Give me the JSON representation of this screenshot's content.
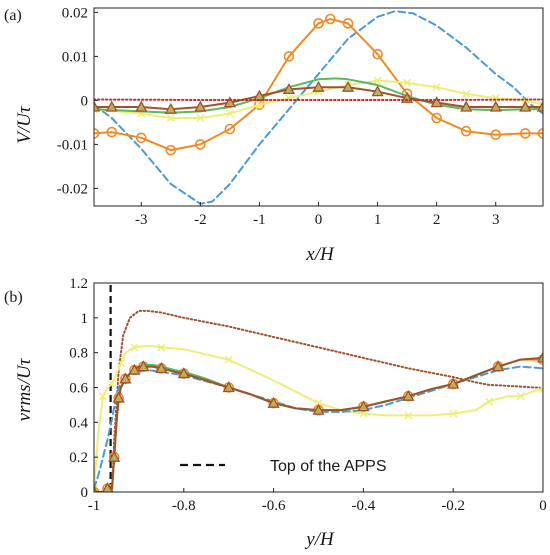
{
  "chart_data": [
    {
      "panel_label": "(a)",
      "type": "line",
      "xlabel": "x/H",
      "ylabel": "V/Uτ",
      "xlim": [
        -3.8,
        3.8
      ],
      "ylim": [
        -0.024,
        0.021
      ],
      "xticks": [
        -3,
        -2,
        -1,
        0,
        1,
        2,
        3
      ],
      "xtick_labels": [
        "-3",
        "-2",
        "-1",
        "0",
        "1",
        "2",
        "3"
      ],
      "yticks": [
        -0.02,
        -0.01,
        0,
        0.01,
        0.02
      ],
      "ytick_labels": [
        "-0.02",
        "-0.01",
        "0",
        "0.01",
        "0.02"
      ],
      "grid": false,
      "series": [
        {
          "color": "#4b9ad4",
          "style": "dashed",
          "marker": "none",
          "x": [
            -3.8,
            -3.5,
            -3.0,
            -2.5,
            -2.0,
            -1.8,
            -1.5,
            -1.0,
            -0.5,
            0.0,
            0.5,
            1.0,
            1.3,
            1.6,
            2.0,
            2.5,
            3.0,
            3.3,
            3.6,
            3.8
          ],
          "y": [
            -0.001,
            -0.004,
            -0.011,
            -0.019,
            -0.0235,
            -0.023,
            -0.019,
            -0.01,
            -0.002,
            0.006,
            0.014,
            0.019,
            0.0203,
            0.0198,
            0.017,
            0.012,
            0.006,
            0.003,
            -0.001,
            -0.003
          ]
        },
        {
          "color": "#f08a24",
          "style": "solid",
          "marker": "circle",
          "x": [
            -3.8,
            -3.5,
            -3.0,
            -2.5,
            -2.0,
            -1.5,
            -1.0,
            -0.5,
            0.0,
            0.2,
            0.5,
            1.0,
            1.5,
            2.0,
            2.5,
            3.0,
            3.5,
            3.8
          ],
          "y": [
            -0.0075,
            -0.0072,
            -0.0085,
            -0.0113,
            -0.01,
            -0.0065,
            -0.001,
            0.01,
            0.0175,
            0.0185,
            0.0175,
            0.0105,
            0.0015,
            -0.004,
            -0.007,
            -0.0078,
            -0.0075,
            -0.0075
          ]
        },
        {
          "color": "#eded7a",
          "style": "solid",
          "marker": "x",
          "x": [
            -3.8,
            -3.0,
            -2.5,
            -2.0,
            -1.5,
            -1.0,
            -0.5,
            0.0,
            0.5,
            1.0,
            1.5,
            2.0,
            2.5,
            3.0,
            3.5,
            3.8
          ],
          "y": [
            -0.002,
            -0.003,
            -0.004,
            -0.004,
            -0.003,
            -0.001,
            0.0005,
            0.002,
            0.0035,
            0.0045,
            0.004,
            0.003,
            0.0015,
            0.0005,
            0.0,
            -0.001
          ]
        },
        {
          "color": "#5cb85c",
          "style": "solid",
          "marker": "none",
          "x": [
            -3.8,
            -3.0,
            -2.5,
            -2.0,
            -1.5,
            -1.0,
            -0.5,
            0.0,
            0.3,
            0.5,
            1.0,
            1.5,
            2.0,
            2.5,
            3.0,
            3.5,
            3.8
          ],
          "y": [
            -0.002,
            -0.0025,
            -0.0028,
            -0.0025,
            -0.0015,
            0.0005,
            0.003,
            0.0048,
            0.005,
            0.0048,
            0.0035,
            0.001,
            -0.001,
            -0.002,
            -0.0022,
            -0.002,
            -0.002
          ]
        },
        {
          "color": "#a0522d",
          "style": "solid",
          "marker": "triangle",
          "x": [
            -3.8,
            -3.5,
            -3.0,
            -2.5,
            -2.0,
            -1.5,
            -1.0,
            -0.5,
            0.0,
            0.5,
            1.0,
            1.5,
            2.0,
            2.5,
            3.0,
            3.5,
            3.8
          ],
          "y": [
            -0.0015,
            -0.0015,
            -0.0015,
            -0.002,
            -0.0015,
            -0.0005,
            0.001,
            0.0025,
            0.003,
            0.003,
            0.002,
            0.0005,
            -0.0005,
            -0.0015,
            -0.0015,
            -0.0015,
            -0.0015
          ]
        },
        {
          "color": "#c03030",
          "style": "dotted",
          "marker": "none",
          "x": [
            -3.8,
            -2.0,
            0.0,
            2.0,
            3.8
          ],
          "y": [
            0.0002,
            0.0001,
            0.0001,
            0.0001,
            0.0002
          ]
        }
      ]
    },
    {
      "panel_label": "(b)",
      "type": "line",
      "xlabel": "y/H",
      "ylabel": "vrms/Uτ",
      "xlim": [
        -1.0,
        0.0
      ],
      "ylim": [
        0.0,
        1.2
      ],
      "xticks": [
        -1,
        -0.8,
        -0.6,
        -0.4,
        -0.2,
        0
      ],
      "xtick_labels": [
        "-1",
        "-0.8",
        "-0.6",
        "-0.4",
        "-0.2",
        "0"
      ],
      "yticks": [
        0,
        0.2,
        0.4,
        0.6,
        0.8,
        1.0,
        1.2
      ],
      "ytick_labels": [
        "0",
        "0.2",
        "0.4",
        "0.6",
        "0.8",
        "1",
        "1.2"
      ],
      "grid": false,
      "annotation_line_x": -0.963,
      "legend": [
        {
          "label": "Top of the APPS",
          "style": "dashed",
          "color": "#111111"
        }
      ],
      "series": [
        {
          "color": "#a0522d",
          "style": "dotted",
          "marker": "none",
          "x": [
            -0.96,
            -0.955,
            -0.945,
            -0.935,
            -0.92,
            -0.9,
            -0.88,
            -0.85,
            -0.8,
            -0.7,
            -0.6,
            -0.5,
            -0.4,
            -0.3,
            -0.2,
            -0.15,
            -0.12,
            -0.08,
            -0.05,
            -0.02,
            0.0
          ],
          "y": [
            0.0,
            0.3,
            0.7,
            0.9,
            1.0,
            1.04,
            1.04,
            1.03,
            1.0,
            0.95,
            0.89,
            0.83,
            0.77,
            0.71,
            0.66,
            0.63,
            0.615,
            0.61,
            0.605,
            0.6,
            0.6
          ]
        },
        {
          "color": "#eded7a",
          "style": "solid",
          "marker": "x",
          "x": [
            -1.0,
            -0.99,
            -0.98,
            -0.97,
            -0.96,
            -0.95,
            -0.94,
            -0.93,
            -0.91,
            -0.88,
            -0.85,
            -0.8,
            -0.7,
            -0.6,
            -0.5,
            -0.45,
            -0.4,
            -0.35,
            -0.3,
            -0.25,
            -0.2,
            -0.15,
            -0.12,
            -0.08,
            -0.05,
            -0.02,
            0.0
          ],
          "y": [
            0.02,
            0.35,
            0.55,
            0.6,
            0.62,
            0.68,
            0.74,
            0.8,
            0.83,
            0.84,
            0.83,
            0.82,
            0.76,
            0.64,
            0.51,
            0.47,
            0.45,
            0.44,
            0.44,
            0.44,
            0.45,
            0.47,
            0.52,
            0.55,
            0.55,
            0.58,
            0.59
          ]
        },
        {
          "color": "#4b9ad4",
          "style": "dashed",
          "marker": "none",
          "x": [
            -1.0,
            -0.99,
            -0.98,
            -0.97,
            -0.96,
            -0.95,
            -0.94,
            -0.93,
            -0.92,
            -0.9,
            -0.88,
            -0.85,
            -0.8,
            -0.7,
            -0.6,
            -0.55,
            -0.5,
            -0.45,
            -0.4,
            -0.35,
            -0.3,
            -0.25,
            -0.2,
            -0.15,
            -0.1,
            -0.05,
            0.0
          ],
          "y": [
            0.02,
            0.1,
            0.2,
            0.3,
            0.42,
            0.56,
            0.63,
            0.66,
            0.68,
            0.69,
            0.7,
            0.69,
            0.67,
            0.6,
            0.52,
            0.48,
            0.46,
            0.46,
            0.47,
            0.5,
            0.54,
            0.58,
            0.62,
            0.66,
            0.7,
            0.72,
            0.71
          ]
        },
        {
          "color": "#f08a24",
          "style": "solid",
          "marker": "circle",
          "x": [
            -1.0,
            -0.98,
            -0.97,
            -0.96,
            -0.955,
            -0.95,
            -0.945,
            -0.94,
            -0.93,
            -0.92,
            -0.91,
            -0.9,
            -0.89,
            -0.87,
            -0.85,
            -0.82,
            -0.8,
            -0.75,
            -0.7,
            -0.65,
            -0.6,
            -0.55,
            -0.5,
            -0.45,
            -0.4,
            -0.35,
            -0.3,
            -0.25,
            -0.2,
            -0.15,
            -0.1,
            -0.05,
            0.0
          ],
          "y": [
            0.0,
            0.0,
            0.02,
            0.02,
            0.2,
            0.4,
            0.54,
            0.6,
            0.65,
            0.68,
            0.7,
            0.72,
            0.72,
            0.72,
            0.71,
            0.69,
            0.68,
            0.64,
            0.6,
            0.56,
            0.51,
            0.48,
            0.47,
            0.47,
            0.49,
            0.52,
            0.55,
            0.59,
            0.62,
            0.67,
            0.72,
            0.76,
            0.76
          ]
        },
        {
          "color": "#5cb85c",
          "style": "solid",
          "marker": "none",
          "x": [
            -1.0,
            -0.98,
            -0.97,
            -0.96,
            -0.955,
            -0.95,
            -0.945,
            -0.94,
            -0.93,
            -0.92,
            -0.91,
            -0.9,
            -0.89,
            -0.87,
            -0.85,
            -0.82,
            -0.8,
            -0.75,
            -0.7,
            -0.65,
            -0.6,
            -0.55,
            -0.5,
            -0.45,
            -0.4,
            -0.35,
            -0.3,
            -0.25,
            -0.2,
            -0.15,
            -0.1,
            -0.05,
            0.0
          ],
          "y": [
            0.0,
            0.0,
            0.02,
            0.02,
            0.2,
            0.4,
            0.54,
            0.6,
            0.65,
            0.68,
            0.7,
            0.72,
            0.73,
            0.73,
            0.72,
            0.7,
            0.69,
            0.65,
            0.6,
            0.56,
            0.51,
            0.48,
            0.47,
            0.47,
            0.49,
            0.52,
            0.55,
            0.59,
            0.62,
            0.67,
            0.72,
            0.76,
            0.77
          ]
        },
        {
          "color": "#a0522d",
          "style": "solid",
          "marker": "triangle",
          "x": [
            -1.0,
            -0.98,
            -0.97,
            -0.96,
            -0.955,
            -0.95,
            -0.945,
            -0.94,
            -0.93,
            -0.92,
            -0.91,
            -0.9,
            -0.89,
            -0.87,
            -0.85,
            -0.82,
            -0.8,
            -0.75,
            -0.7,
            -0.65,
            -0.6,
            -0.55,
            -0.5,
            -0.45,
            -0.4,
            -0.35,
            -0.3,
            -0.25,
            -0.2,
            -0.15,
            -0.1,
            -0.05,
            0.0
          ],
          "y": [
            0.0,
            0.0,
            0.02,
            0.02,
            0.2,
            0.4,
            0.54,
            0.6,
            0.65,
            0.68,
            0.7,
            0.72,
            0.72,
            0.72,
            0.71,
            0.69,
            0.68,
            0.64,
            0.6,
            0.56,
            0.51,
            0.48,
            0.47,
            0.47,
            0.49,
            0.52,
            0.55,
            0.59,
            0.62,
            0.67,
            0.72,
            0.76,
            0.77
          ]
        }
      ]
    }
  ]
}
